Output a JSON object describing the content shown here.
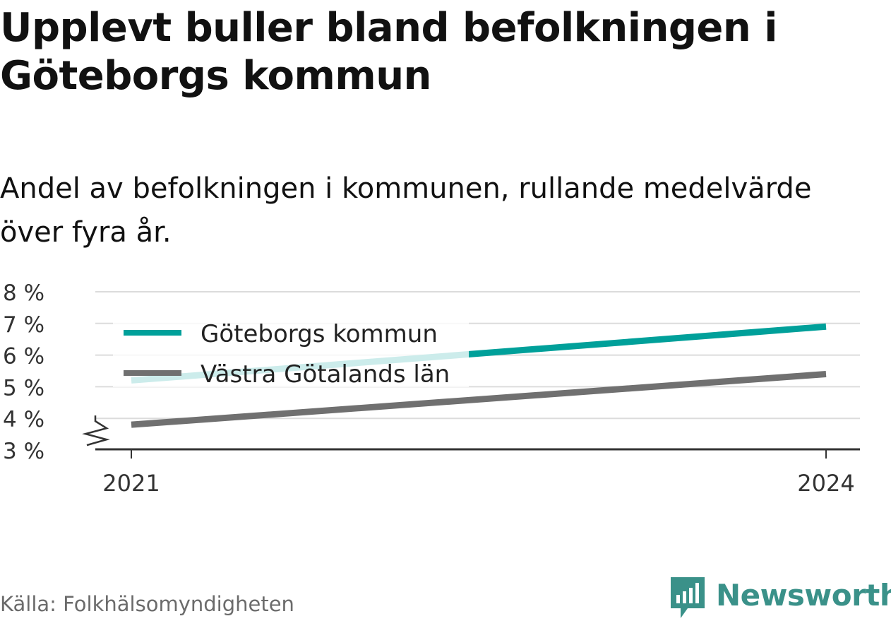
{
  "chart_data": {
    "type": "line",
    "title": "Upplevt buller bland befolkningen i Göteborgs kommun",
    "subtitle": "Andel av befolkningen i kommunen, rullande medelvärde över fyra år.",
    "x": [
      2021,
      2024
    ],
    "x_tick_labels": [
      "2021",
      "2024"
    ],
    "y_tick_labels": [
      "3 %",
      "4 %",
      "5 %",
      "6 %",
      "7 %",
      "8 %"
    ],
    "ylim": [
      3,
      8
    ],
    "y_axis_break": true,
    "grid": true,
    "legend_position": "top-left",
    "series": [
      {
        "name": "Göteborgs kommun",
        "values": [
          5.2,
          6.9
        ],
        "color": "#00a09a"
      },
      {
        "name": "Västra Götalands län",
        "values": [
          3.8,
          5.4
        ],
        "color": "#707070"
      }
    ]
  },
  "footer": {
    "source": "Källa: Folkhälsomyndigheten",
    "brand": "Newsworthy",
    "brand_icon": "newsworthy-logo-icon"
  }
}
